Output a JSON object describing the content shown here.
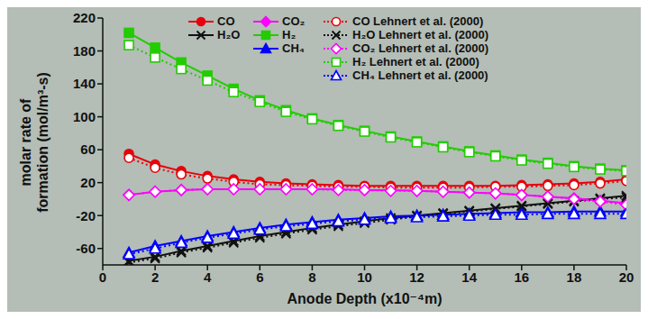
{
  "chart_data": {
    "type": "line",
    "xlabel": "Anode Depth (x10⁻⁴m)",
    "ylabel": [
      "molar rate of",
      "formation (mol/m³-s)"
    ],
    "x": [
      1,
      2,
      3,
      4,
      5,
      6,
      7,
      8,
      9,
      10,
      11,
      12,
      13,
      14,
      15,
      16,
      17,
      18,
      19,
      20
    ],
    "xlim": [
      0,
      20
    ],
    "xticks": [
      0,
      2,
      4,
      6,
      8,
      10,
      12,
      14,
      16,
      18,
      20
    ],
    "ylim": [
      -80,
      220
    ],
    "yticks": [
      -60,
      -20,
      20,
      60,
      100,
      140,
      180,
      220
    ],
    "legend": "top",
    "series": [
      {
        "name": "CO",
        "color": "#e8000b",
        "marker": "circle",
        "line_style": "solid",
        "values": [
          55,
          42,
          34,
          28,
          24,
          21,
          19,
          18,
          17,
          16,
          16,
          16,
          16,
          16,
          16,
          17,
          18,
          19,
          21,
          24
        ]
      },
      {
        "name": "H₂O",
        "color": "#111111",
        "marker": "x",
        "line_style": "solid",
        "values": [
          -75,
          -70,
          -63,
          -57,
          -51,
          -45,
          -40,
          -35,
          -31,
          -27,
          -23,
          -20,
          -17,
          -14,
          -11,
          -8,
          -5,
          -2,
          1,
          4
        ]
      },
      {
        "name": "CO₂",
        "color": "#ff00ff",
        "marker": "diamond",
        "line_style": "solid",
        "values": [
          5,
          9,
          11,
          12,
          12,
          12,
          12,
          12,
          12,
          11,
          11,
          10,
          9,
          8,
          7,
          5,
          3,
          1,
          -2,
          -5
        ]
      },
      {
        "name": "H₂",
        "color": "#22cc00",
        "marker": "square",
        "line_style": "solid",
        "values": [
          202,
          184,
          166,
          150,
          134,
          120,
          108,
          98,
          90,
          83,
          76,
          70,
          64,
          58,
          53,
          48,
          44,
          40,
          37,
          35
        ]
      },
      {
        "name": "CH₄",
        "color": "#0000ff",
        "marker": "triangle",
        "line_style": "solid",
        "values": [
          -65,
          -57,
          -51,
          -45,
          -40,
          -35,
          -31,
          -28,
          -25,
          -23,
          -21,
          -20,
          -19,
          -18,
          -17,
          -16,
          -16,
          -15,
          -15,
          -15
        ]
      },
      {
        "name": "CO Lehnert et al. (2000)",
        "color": "#e8000b",
        "marker": "open_circle",
        "line_style": "dotted",
        "values": [
          50,
          38,
          30,
          25,
          21,
          18,
          17,
          16,
          15,
          15,
          14,
          14,
          14,
          14,
          15,
          15,
          16,
          17,
          19,
          22
        ]
      },
      {
        "name": "H₂O Lehnert et al. (2000)",
        "color": "#111111",
        "marker": "x",
        "line_style": "dotted",
        "values": [
          -77,
          -72,
          -65,
          -59,
          -53,
          -47,
          -42,
          -37,
          -33,
          -29,
          -25,
          -21,
          -18,
          -15,
          -12,
          -9,
          -6,
          -3,
          0,
          2
        ]
      },
      {
        "name": "CO₂ Lehnert et al. (2000)",
        "color": "#ff00ff",
        "marker": "open_diamond",
        "line_style": "dotted",
        "values": [
          5,
          9,
          11,
          12,
          12,
          12,
          12,
          12,
          11,
          11,
          10,
          10,
          9,
          8,
          7,
          5,
          3,
          0,
          -3,
          -7
        ]
      },
      {
        "name": "H₂ Lehnert et al. (2000)",
        "color": "#22cc00",
        "marker": "open_square",
        "line_style": "dotted",
        "values": [
          187,
          172,
          158,
          144,
          130,
          118,
          106,
          97,
          89,
          82,
          75,
          69,
          63,
          57,
          52,
          47,
          43,
          39,
          36,
          34
        ]
      },
      {
        "name": "CH₄ Lehnert et al. (2000)",
        "color": "#0000ff",
        "marker": "open_triangle",
        "line_style": "dotted",
        "values": [
          -67,
          -60,
          -53,
          -47,
          -42,
          -37,
          -33,
          -30,
          -27,
          -25,
          -23,
          -22,
          -21,
          -20,
          -19,
          -19,
          -18,
          -18,
          -18,
          -18
        ]
      }
    ]
  }
}
